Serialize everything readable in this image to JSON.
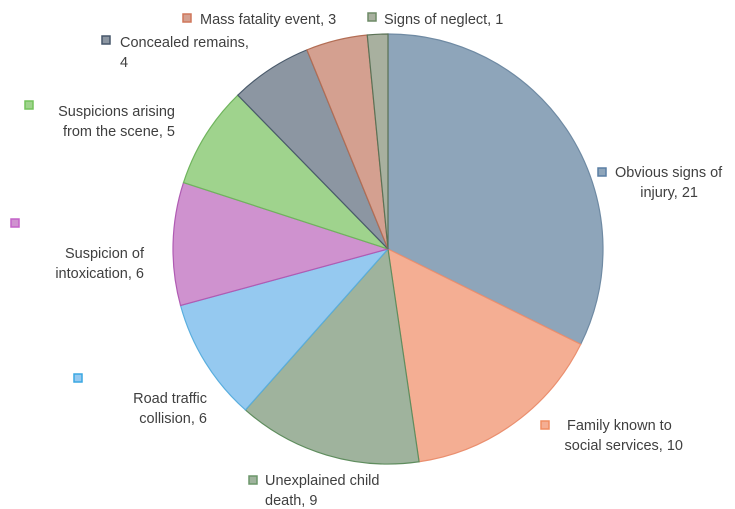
{
  "chart_data": {
    "type": "pie",
    "title": "",
    "start_angle_deg": 0,
    "direction": "clockwise",
    "slices": [
      {
        "label": "Obvious signs of injury",
        "value": 21,
        "color": "#8ea5ba",
        "edge": "#6f8aa3",
        "legend": "#5a7fa4",
        "lines": [
          "Obvious signs of",
          "injury, 21"
        ]
      },
      {
        "label": "Family known to social services",
        "value": 10,
        "color": "#f4ae93",
        "edge": "#ea8f6f",
        "legend": "#f08d62",
        "lines": [
          "Family known to",
          "social services, 10"
        ]
      },
      {
        "label": "Unexplained child death",
        "value": 9,
        "color": "#9fb39d",
        "edge": "#5f8d5e",
        "legend": "#6b966a",
        "lines": [
          "Unexplained child",
          "death, 9"
        ]
      },
      {
        "label": "Road traffic collision",
        "value": 6,
        "color": "#95c9f0",
        "edge": "#5aaede",
        "legend": "#3aa7e2",
        "lines": [
          "Road traffic",
          "collision, 6"
        ]
      },
      {
        "label": "Suspicion of intoxication",
        "value": 6,
        "color": "#cf92cf",
        "edge": "#b05bb3",
        "legend": "#c462c8",
        "lines": [
          "Suspicion of",
          "intoxication, 6"
        ]
      },
      {
        "label": "Suspicions arising from the scene",
        "value": 5,
        "color": "#9fd38d",
        "edge": "#6fb45d",
        "legend": "#74c35c",
        "lines": [
          "Suspicions arising",
          "from the scene, 5"
        ]
      },
      {
        "label": "Concealed remains",
        "value": 4,
        "color": "#8c96a2",
        "edge": "#4a5a6b",
        "legend": "#46566a",
        "lines": [
          "Concealed remains,",
          "4"
        ]
      },
      {
        "label": "Mass fatality event",
        "value": 3,
        "color": "#d4a090",
        "edge": "#b36e55",
        "legend": "#d0775a",
        "lines": [
          "Mass fatality event, 3"
        ]
      },
      {
        "label": "Signs of neglect",
        "value": 1,
        "color": "#a8b09f",
        "edge": "#5b7256",
        "legend": "#6d8a66",
        "lines": [
          "Signs of neglect, 1"
        ]
      }
    ]
  }
}
